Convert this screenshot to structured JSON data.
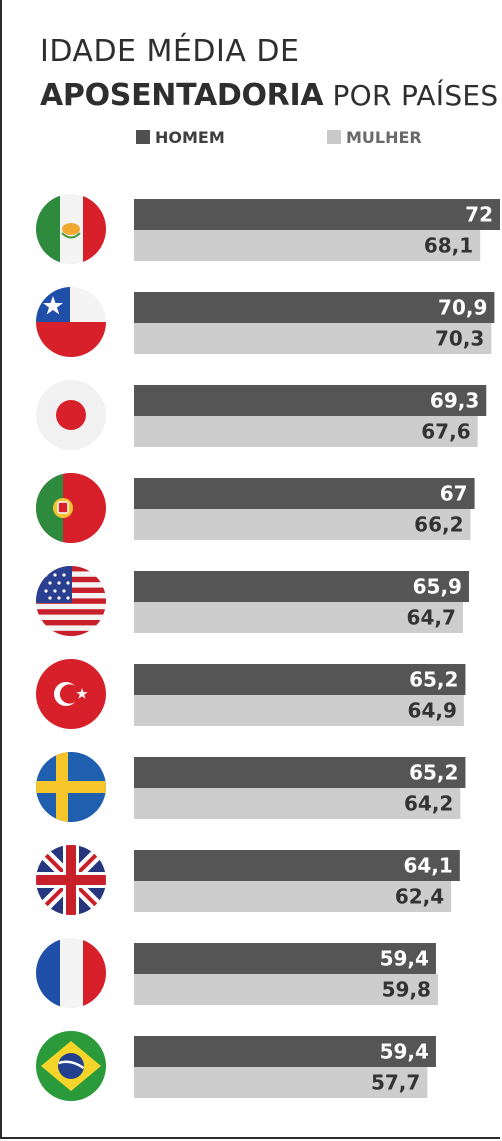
{
  "title": {
    "line1": "IDADE MÉDIA DE",
    "line2_bold": "APOSENTADORIA",
    "line2_rest": " POR PAÍSES"
  },
  "legend": {
    "men": "HOMEM",
    "women": "MULHER"
  },
  "colors": {
    "men": "#555555",
    "women": "#cdcdcd",
    "men_label": "#ffffff",
    "women_label": "#333333"
  },
  "chart_data": {
    "type": "bar",
    "orientation": "horizontal",
    "categories": [
      "Mexico flag",
      "Chile flag",
      "Japan flag",
      "Portugal flag",
      "USA flag",
      "Turkey flag",
      "Sweden flag",
      "UK flag",
      "France flag",
      "Brazil flag"
    ],
    "series": [
      {
        "name": "HOMEM",
        "values": [
          72,
          70.9,
          69.3,
          67,
          65.9,
          65.2,
          65.2,
          64.1,
          59.4,
          59.4
        ]
      },
      {
        "name": "MULHER",
        "values": [
          68.1,
          70.3,
          67.6,
          66.2,
          64.7,
          64.9,
          64.2,
          62.4,
          59.8,
          57.7
        ]
      }
    ],
    "value_labels": {
      "HOMEM": [
        "72",
        "70,9",
        "69,3",
        "67",
        "65,9",
        "65,2",
        "65,2",
        "64,1",
        "59,4",
        "59,4"
      ],
      "MULHER": [
        "68,1",
        "70,3",
        "67,6",
        "66,2",
        "64,7",
        "64,9",
        "64,2",
        "62,4",
        "59,8",
        "57,7"
      ]
    },
    "legend_position": "top",
    "grid": false
  }
}
